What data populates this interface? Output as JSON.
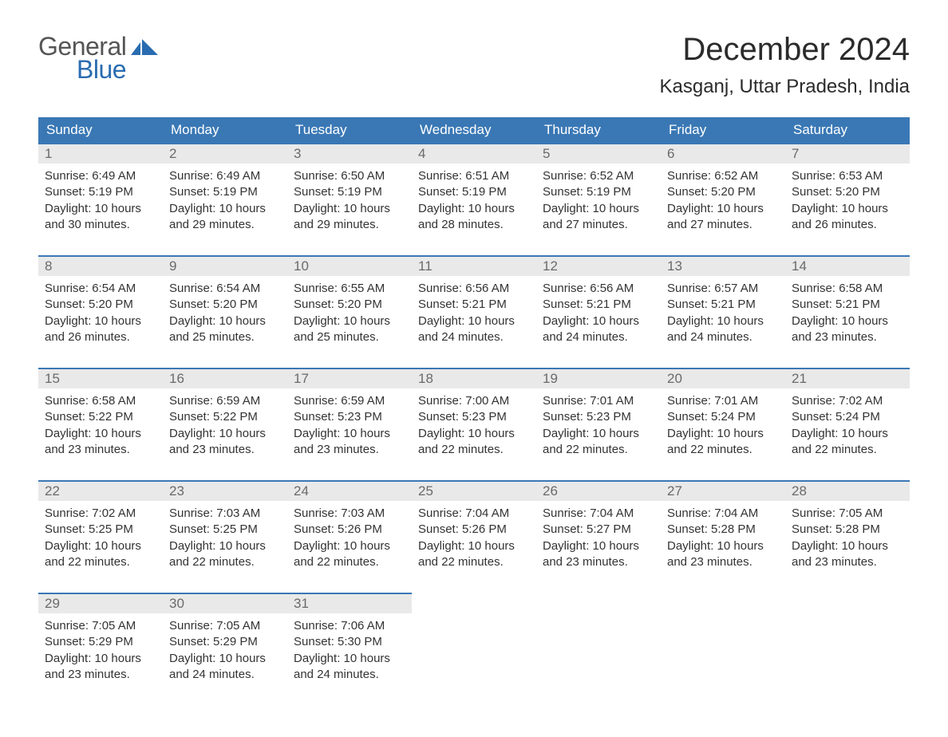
{
  "logo": {
    "line1": "General",
    "line2": "Blue"
  },
  "title": "December 2024",
  "location": "Kasganj, Uttar Pradesh, India",
  "weekdays": [
    "Sunday",
    "Monday",
    "Tuesday",
    "Wednesday",
    "Thursday",
    "Friday",
    "Saturday"
  ],
  "colors": {
    "header_bg": "#3a78b5",
    "header_text": "#ffffff",
    "row_divider": "#3a78b5",
    "daynum_bg": "#e9e9e9",
    "daynum_text": "#6a6a6a",
    "body_text": "#333333",
    "logo_gray": "#555555",
    "logo_blue": "#2a6cb0",
    "background": "#ffffff"
  },
  "typography": {
    "title_fontsize": 40,
    "location_fontsize": 24,
    "weekday_fontsize": 17,
    "daynum_fontsize": 17,
    "body_fontsize": 15,
    "logo_fontsize": 32,
    "font_family": "Arial"
  },
  "layout": {
    "columns": 7,
    "rows": 5,
    "first_day_column": 0
  },
  "labels": {
    "sunrise": "Sunrise:",
    "sunset": "Sunset:",
    "daylight": "Daylight:"
  },
  "days": [
    {
      "n": 1,
      "sunrise": "6:49 AM",
      "sunset": "5:19 PM",
      "daylight": "10 hours and 30 minutes."
    },
    {
      "n": 2,
      "sunrise": "6:49 AM",
      "sunset": "5:19 PM",
      "daylight": "10 hours and 29 minutes."
    },
    {
      "n": 3,
      "sunrise": "6:50 AM",
      "sunset": "5:19 PM",
      "daylight": "10 hours and 29 minutes."
    },
    {
      "n": 4,
      "sunrise": "6:51 AM",
      "sunset": "5:19 PM",
      "daylight": "10 hours and 28 minutes."
    },
    {
      "n": 5,
      "sunrise": "6:52 AM",
      "sunset": "5:19 PM",
      "daylight": "10 hours and 27 minutes."
    },
    {
      "n": 6,
      "sunrise": "6:52 AM",
      "sunset": "5:20 PM",
      "daylight": "10 hours and 27 minutes."
    },
    {
      "n": 7,
      "sunrise": "6:53 AM",
      "sunset": "5:20 PM",
      "daylight": "10 hours and 26 minutes."
    },
    {
      "n": 8,
      "sunrise": "6:54 AM",
      "sunset": "5:20 PM",
      "daylight": "10 hours and 26 minutes."
    },
    {
      "n": 9,
      "sunrise": "6:54 AM",
      "sunset": "5:20 PM",
      "daylight": "10 hours and 25 minutes."
    },
    {
      "n": 10,
      "sunrise": "6:55 AM",
      "sunset": "5:20 PM",
      "daylight": "10 hours and 25 minutes."
    },
    {
      "n": 11,
      "sunrise": "6:56 AM",
      "sunset": "5:21 PM",
      "daylight": "10 hours and 24 minutes."
    },
    {
      "n": 12,
      "sunrise": "6:56 AM",
      "sunset": "5:21 PM",
      "daylight": "10 hours and 24 minutes."
    },
    {
      "n": 13,
      "sunrise": "6:57 AM",
      "sunset": "5:21 PM",
      "daylight": "10 hours and 24 minutes."
    },
    {
      "n": 14,
      "sunrise": "6:58 AM",
      "sunset": "5:21 PM",
      "daylight": "10 hours and 23 minutes."
    },
    {
      "n": 15,
      "sunrise": "6:58 AM",
      "sunset": "5:22 PM",
      "daylight": "10 hours and 23 minutes."
    },
    {
      "n": 16,
      "sunrise": "6:59 AM",
      "sunset": "5:22 PM",
      "daylight": "10 hours and 23 minutes."
    },
    {
      "n": 17,
      "sunrise": "6:59 AM",
      "sunset": "5:23 PM",
      "daylight": "10 hours and 23 minutes."
    },
    {
      "n": 18,
      "sunrise": "7:00 AM",
      "sunset": "5:23 PM",
      "daylight": "10 hours and 22 minutes."
    },
    {
      "n": 19,
      "sunrise": "7:01 AM",
      "sunset": "5:23 PM",
      "daylight": "10 hours and 22 minutes."
    },
    {
      "n": 20,
      "sunrise": "7:01 AM",
      "sunset": "5:24 PM",
      "daylight": "10 hours and 22 minutes."
    },
    {
      "n": 21,
      "sunrise": "7:02 AM",
      "sunset": "5:24 PM",
      "daylight": "10 hours and 22 minutes."
    },
    {
      "n": 22,
      "sunrise": "7:02 AM",
      "sunset": "5:25 PM",
      "daylight": "10 hours and 22 minutes."
    },
    {
      "n": 23,
      "sunrise": "7:03 AM",
      "sunset": "5:25 PM",
      "daylight": "10 hours and 22 minutes."
    },
    {
      "n": 24,
      "sunrise": "7:03 AM",
      "sunset": "5:26 PM",
      "daylight": "10 hours and 22 minutes."
    },
    {
      "n": 25,
      "sunrise": "7:04 AM",
      "sunset": "5:26 PM",
      "daylight": "10 hours and 22 minutes."
    },
    {
      "n": 26,
      "sunrise": "7:04 AM",
      "sunset": "5:27 PM",
      "daylight": "10 hours and 23 minutes."
    },
    {
      "n": 27,
      "sunrise": "7:04 AM",
      "sunset": "5:28 PM",
      "daylight": "10 hours and 23 minutes."
    },
    {
      "n": 28,
      "sunrise": "7:05 AM",
      "sunset": "5:28 PM",
      "daylight": "10 hours and 23 minutes."
    },
    {
      "n": 29,
      "sunrise": "7:05 AM",
      "sunset": "5:29 PM",
      "daylight": "10 hours and 23 minutes."
    },
    {
      "n": 30,
      "sunrise": "7:05 AM",
      "sunset": "5:29 PM",
      "daylight": "10 hours and 24 minutes."
    },
    {
      "n": 31,
      "sunrise": "7:06 AM",
      "sunset": "5:30 PM",
      "daylight": "10 hours and 24 minutes."
    }
  ]
}
